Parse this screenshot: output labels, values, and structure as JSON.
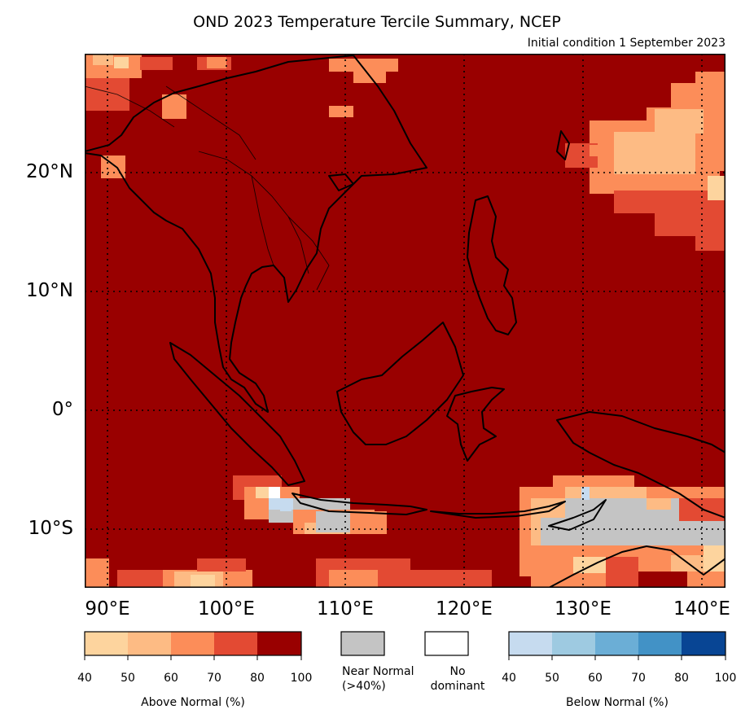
{
  "title": "OND 2023 Temperature Tercile Summary, NCEP",
  "subtitle": "Initial condition 1 September 2023",
  "map": {
    "region": "Southeast Asia / Maritime Continent",
    "variable": "Temperature tercile probability",
    "lon_range": [
      88,
      142
    ],
    "lat_range": [
      -15,
      30
    ],
    "lat_labels": [
      "20°N",
      "10°N",
      "0°",
      "10°S"
    ],
    "lon_labels": [
      "90°E",
      "100°E",
      "110°E",
      "120°E",
      "130°E",
      "140°E"
    ],
    "dominant_category": "Above Normal 80-100%",
    "colors": {
      "ocean_land_fill": "#990000",
      "coastline": "#000000",
      "near_normal": "#c4c4c4",
      "no_dominant": "#ffffff"
    }
  },
  "legend": {
    "above_normal": {
      "label": "Above Normal (%)",
      "ticks": [
        "40",
        "50",
        "60",
        "70",
        "80",
        "100"
      ],
      "colors": [
        "#fdd49e",
        "#fdbb84",
        "#fc8d59",
        "#e34a33",
        "#990000"
      ]
    },
    "near_normal": {
      "label": "Near Normal\n(>40%)",
      "color": "#c4c4c4"
    },
    "no_dominant": {
      "label": "No\ndominant",
      "color": "#ffffff"
    },
    "below_normal": {
      "label": "Below Normal (%)",
      "ticks": [
        "40",
        "50",
        "60",
        "70",
        "80",
        "100"
      ],
      "colors": [
        "#c6dbef",
        "#9ecae1",
        "#6baed6",
        "#4292c6",
        "#084594"
      ]
    }
  }
}
